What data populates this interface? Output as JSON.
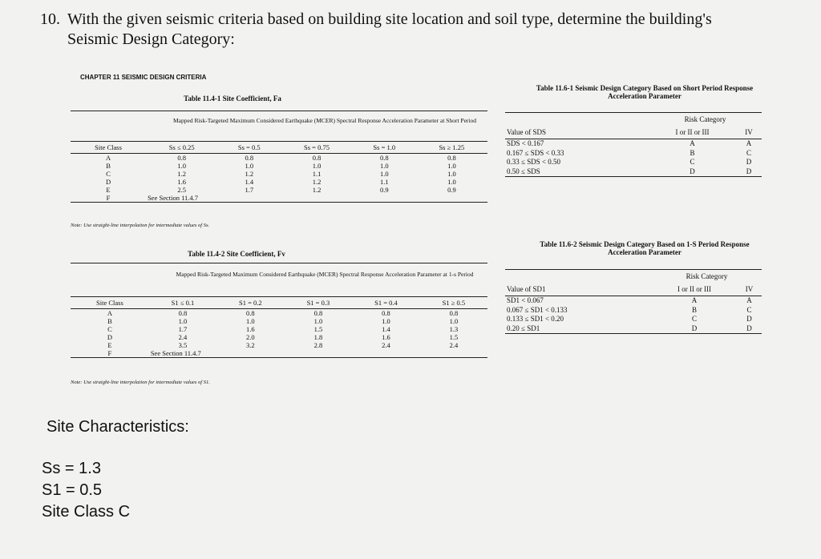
{
  "question": {
    "number": "10.",
    "text": "With the given seismic criteria based on building site location and soil type, determine the building's Seismic Design Category:"
  },
  "chapter": "CHAPTER 11   SEISMIC DESIGN CRITERIA",
  "table_fa": {
    "title": "Table 11.4-1 Site Coefficient, Fa",
    "caption": "Mapped Risk-Targeted Maximum Considered Earthquake (MCER) Spectral Response Acceleration Parameter at Short Period",
    "columns": [
      "Site Class",
      "Ss ≤ 0.25",
      "Ss = 0.5",
      "Ss = 0.75",
      "Ss = 1.0",
      "Ss ≥ 1.25"
    ],
    "rows": [
      [
        "A",
        "0.8",
        "0.8",
        "0.8",
        "0.8",
        "0.8"
      ],
      [
        "B",
        "1.0",
        "1.0",
        "1.0",
        "1.0",
        "1.0"
      ],
      [
        "C",
        "1.2",
        "1.2",
        "1.1",
        "1.0",
        "1.0"
      ],
      [
        "D",
        "1.6",
        "1.4",
        "1.2",
        "1.1",
        "1.0"
      ],
      [
        "E",
        "2.5",
        "1.7",
        "1.2",
        "0.9",
        "0.9"
      ],
      [
        "F",
        "See Section 11.4.7"
      ]
    ],
    "note": "Note: Use straight-line interpolation for intermediate values of Ss."
  },
  "table_fv": {
    "title": "Table 11.4-2 Site Coefficient, Fv",
    "caption": "Mapped Risk-Targeted Maximum Considered Earthquake (MCER) Spectral Response Acceleration Parameter at 1-s Period",
    "columns": [
      "Site Class",
      "S1 ≤ 0.1",
      "S1 = 0.2",
      "S1 = 0.3",
      "S1 = 0.4",
      "S1 ≥ 0.5"
    ],
    "rows": [
      [
        "A",
        "0.8",
        "0.8",
        "0.8",
        "0.8",
        "0.8"
      ],
      [
        "B",
        "1.0",
        "1.0",
        "1.0",
        "1.0",
        "1.0"
      ],
      [
        "C",
        "1.7",
        "1.6",
        "1.5",
        "1.4",
        "1.3"
      ],
      [
        "D",
        "2.4",
        "2.0",
        "1.8",
        "1.6",
        "1.5"
      ],
      [
        "E",
        "3.5",
        "3.2",
        "2.8",
        "2.4",
        "2.4"
      ],
      [
        "F",
        "See Section 11.4.7"
      ]
    ],
    "note": "Note: Use straight-line interpolation for intermediate values of S1."
  },
  "table_sds": {
    "title": "Table 11.6-1 Seismic Design Category Based on Short Period Response Acceleration Parameter",
    "risk_label": "Risk Category",
    "columns": [
      "Value of SDS",
      "I or II or III",
      "IV"
    ],
    "rows": [
      [
        "SDS < 0.167",
        "A",
        "A"
      ],
      [
        "0.167 ≤ SDS < 0.33",
        "B",
        "C"
      ],
      [
        "0.33 ≤ SDS < 0.50",
        "C",
        "D"
      ],
      [
        "0.50 ≤ SDS",
        "D",
        "D"
      ]
    ]
  },
  "table_sd1": {
    "title": "Table 11.6-2 Seismic Design Category Based on 1-S Period Response Acceleration Parameter",
    "risk_label": "Risk Category",
    "columns": [
      "Value of SD1",
      "I or II or III",
      "IV"
    ],
    "rows": [
      [
        "SD1 < 0.067",
        "A",
        "A"
      ],
      [
        "0.067 ≤ SD1 < 0.133",
        "B",
        "C"
      ],
      [
        "0.133 ≤ SD1 < 0.20",
        "C",
        "D"
      ],
      [
        "0.20 ≤ SD1",
        "D",
        "D"
      ]
    ]
  },
  "site": {
    "heading": "Site Characteristics:",
    "items": [
      "Ss = 1.3",
      "S1 = 0.5",
      "Site Class C"
    ]
  }
}
